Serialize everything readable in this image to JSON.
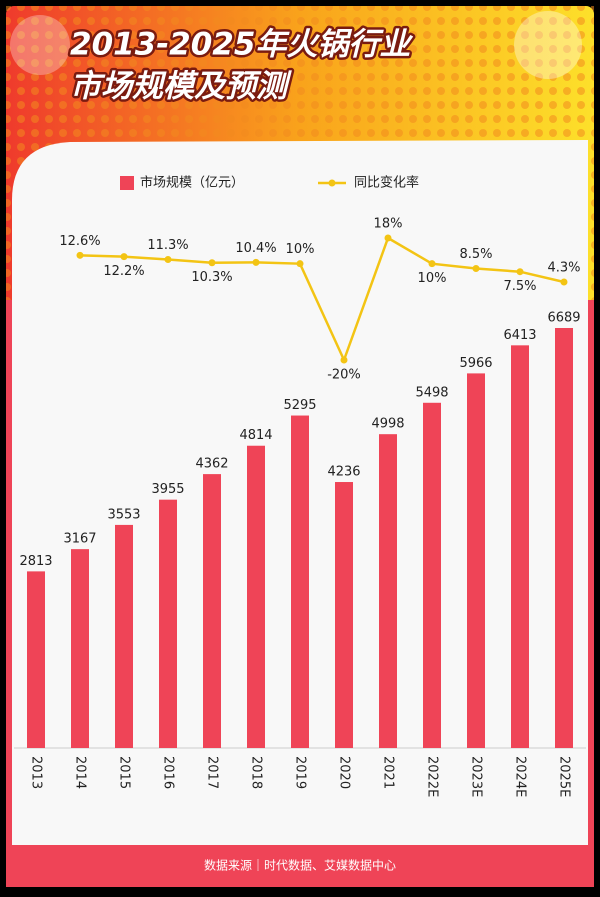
{
  "chart_data": {
    "type": "bar",
    "title": "2013-2025年火锅行业",
    "subtitle": "市场规模及预测",
    "categories": [
      "2013",
      "2014",
      "2015",
      "2016",
      "2017",
      "2018",
      "2019",
      "2020",
      "2021",
      "2022E",
      "2023E",
      "2024E",
      "2025E"
    ],
    "series": [
      {
        "name": "市场规模（亿元）",
        "type": "bar",
        "color": "#ef4457",
        "values": [
          2813,
          3167,
          3553,
          3955,
          4362,
          4814,
          5295,
          4236,
          4998,
          5498,
          5966,
          6413,
          6689
        ]
      },
      {
        "name": "同比变化率",
        "type": "line",
        "color": "#f3c414",
        "values": [
          null,
          12.6,
          12.2,
          11.3,
          10.3,
          10.4,
          10,
          -20,
          18,
          10,
          8.5,
          7.5,
          4.3
        ],
        "value_labels": [
          null,
          "12.6%",
          "12.2%",
          "11.3%",
          "10.3%",
          "10.4%",
          "10%",
          "-20%",
          "18%",
          "10%",
          "8.5%",
          "7.5%",
          "4.3%"
        ]
      }
    ],
    "source": "数据来源｜时代数据、艾媒数据中心"
  }
}
